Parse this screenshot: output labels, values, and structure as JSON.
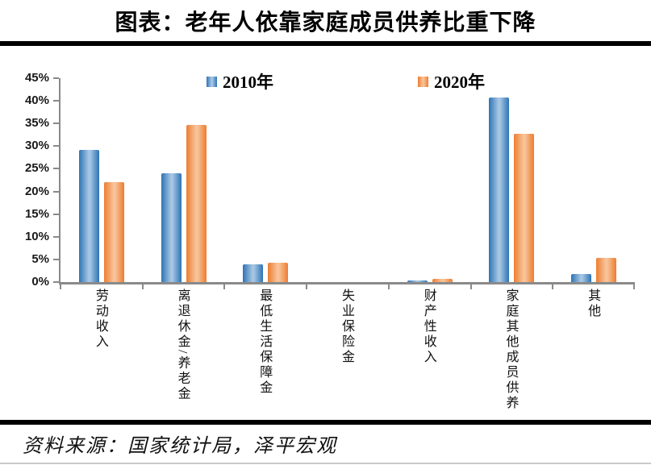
{
  "header": {
    "title": "图表：老年人依靠家庭成员供养比重下降"
  },
  "footer": {
    "source": "资料来源：国家统计局，泽平宏观"
  },
  "chart_data": {
    "type": "bar",
    "title": "图表：老年人依靠家庭成员供养比重下降",
    "categories": [
      "劳动收入",
      "离退休金/养老金",
      "最低生活保障金",
      "失业保险金",
      "财产性收入",
      "家庭其他成员供养",
      "其他"
    ],
    "series": [
      {
        "name": "2010年",
        "color": "#2E74B5",
        "color_light": "#A6C6E4",
        "values": [
          29.1,
          24.1,
          3.9,
          0,
          0.4,
          40.7,
          1.8
        ]
      },
      {
        "name": "2020年",
        "color": "#ED7D31",
        "color_light": "#F8C399",
        "values": [
          22.0,
          34.7,
          4.3,
          0,
          0.8,
          32.7,
          5.4
        ]
      }
    ],
    "xlabel": "",
    "ylabel": "",
    "ylim": [
      0,
      45
    ],
    "ytick_step": 5,
    "ytick_suffix": "%",
    "grid": false,
    "legend_position": "top-inside",
    "axis_color": "#8a8a8a",
    "source": "资料来源：国家统计局，泽平宏观"
  }
}
